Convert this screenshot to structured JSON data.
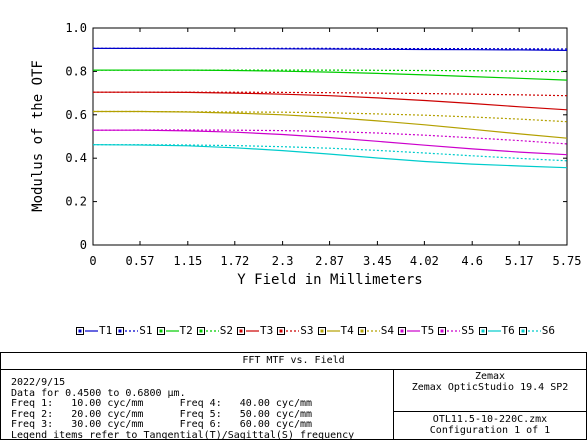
{
  "chart_data": {
    "type": "line",
    "title": "",
    "xlabel": "Y Field in Millimeters",
    "ylabel": "Modulus of the OTF",
    "xlim": [
      0,
      5.75
    ],
    "ylim": [
      0,
      1.0
    ],
    "x_ticks": [
      "0",
      "0.57",
      "1.15",
      "1.72",
      "2.3",
      "2.87",
      "3.45",
      "4.02",
      "4.6",
      "5.17",
      "5.75"
    ],
    "y_ticks": [
      "0",
      "0.2",
      "0.4",
      "0.6",
      "0.8",
      "1.0"
    ],
    "grid": false,
    "legend_position": "bottom",
    "x": [
      0,
      0.575,
      1.15,
      1.725,
      2.3,
      2.875,
      3.45,
      4.025,
      4.6,
      5.175,
      5.75
    ],
    "series": [
      {
        "name": "T1",
        "color": "#0000cc",
        "dash": false,
        "values": [
          0.906,
          0.906,
          0.906,
          0.905,
          0.904,
          0.903,
          0.902,
          0.901,
          0.9,
          0.899,
          0.897
        ]
      },
      {
        "name": "S1",
        "color": "#0000cc",
        "dash": true,
        "values": [
          0.906,
          0.906,
          0.906,
          0.906,
          0.906,
          0.906,
          0.905,
          0.905,
          0.905,
          0.904,
          0.903
        ]
      },
      {
        "name": "T2",
        "color": "#00cc00",
        "dash": false,
        "values": [
          0.806,
          0.806,
          0.806,
          0.804,
          0.801,
          0.797,
          0.791,
          0.784,
          0.776,
          0.768,
          0.76
        ]
      },
      {
        "name": "S2",
        "color": "#00cc00",
        "dash": true,
        "values": [
          0.806,
          0.806,
          0.806,
          0.806,
          0.806,
          0.806,
          0.805,
          0.804,
          0.803,
          0.801,
          0.799
        ]
      },
      {
        "name": "T3",
        "color": "#cc0000",
        "dash": false,
        "values": [
          0.704,
          0.704,
          0.703,
          0.7,
          0.695,
          0.688,
          0.678,
          0.666,
          0.652,
          0.637,
          0.623
        ]
      },
      {
        "name": "S3",
        "color": "#cc0000",
        "dash": true,
        "values": [
          0.704,
          0.704,
          0.704,
          0.704,
          0.703,
          0.702,
          0.7,
          0.698,
          0.695,
          0.692,
          0.688
        ]
      },
      {
        "name": "T4",
        "color": "#b3a000",
        "dash": false,
        "values": [
          0.615,
          0.615,
          0.613,
          0.608,
          0.6,
          0.588,
          0.572,
          0.554,
          0.533,
          0.512,
          0.492
        ]
      },
      {
        "name": "S4",
        "color": "#b3a000",
        "dash": true,
        "values": [
          0.615,
          0.615,
          0.614,
          0.613,
          0.612,
          0.609,
          0.604,
          0.598,
          0.59,
          0.58,
          0.568
        ]
      },
      {
        "name": "T5",
        "color": "#cc00cc",
        "dash": false,
        "values": [
          0.529,
          0.529,
          0.526,
          0.52,
          0.509,
          0.495,
          0.478,
          0.46,
          0.443,
          0.428,
          0.416
        ]
      },
      {
        "name": "S5",
        "color": "#cc00cc",
        "dash": true,
        "values": [
          0.529,
          0.53,
          0.53,
          0.529,
          0.527,
          0.523,
          0.516,
          0.506,
          0.494,
          0.481,
          0.466
        ]
      },
      {
        "name": "T6",
        "color": "#00cccc",
        "dash": false,
        "values": [
          0.462,
          0.461,
          0.457,
          0.448,
          0.435,
          0.419,
          0.401,
          0.385,
          0.373,
          0.364,
          0.356
        ]
      },
      {
        "name": "S6",
        "color": "#00cccc",
        "dash": true,
        "values": [
          0.462,
          0.462,
          0.461,
          0.458,
          0.453,
          0.446,
          0.436,
          0.424,
          0.411,
          0.399,
          0.388
        ]
      }
    ]
  },
  "info": {
    "title": "FFT MTF vs. Field",
    "date": "2022/9/15",
    "data_line": "Data for 0.4500 to 0.6800 µm.",
    "freq_lines": [
      "Freq 1:   10.00 cyc/mm      Freq 4:   40.00 cyc/mm",
      "Freq 2:   20.00 cyc/mm      Freq 5:   50.00 cyc/mm",
      "Freq 3:   30.00 cyc/mm      Freq 6:   60.00 cyc/mm"
    ],
    "legend_note": "Legend items refer to Tangential(T)/Sagittal(S) frequency",
    "vendor": "Zemax",
    "product": "Zemax OpticStudio 19.4 SP2",
    "file": "OTL11.5-10-220C.zmx",
    "config": "Configuration 1 of 1"
  }
}
